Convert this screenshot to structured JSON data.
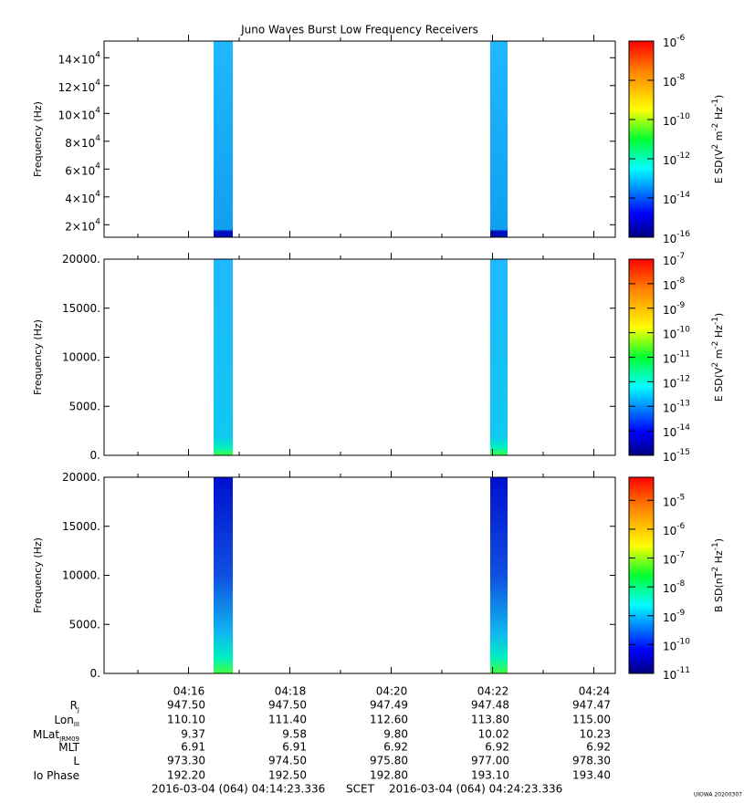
{
  "chart_data": [
    {
      "type": "spectrogram",
      "title": "Juno Waves Burst Low Frequency Receivers",
      "ylabel": "Frequency (Hz)",
      "ylim": [
        11000,
        152000
      ],
      "yticks": [
        {
          "value": 20000,
          "label": "2×10",
          "exponent": "4"
        },
        {
          "value": 40000,
          "label": "4×10",
          "exponent": "4"
        },
        {
          "value": 60000,
          "label": "6×10",
          "exponent": "4"
        },
        {
          "value": 80000,
          "label": "8×10",
          "exponent": "4"
        },
        {
          "value": 100000,
          "label": "10×10",
          "exponent": "4"
        },
        {
          "value": 120000,
          "label": "12×10",
          "exponent": "4"
        },
        {
          "value": 140000,
          "label": "14×10",
          "exponent": "4"
        }
      ],
      "zlim": [
        -16,
        -6
      ],
      "log_z": true,
      "zticks": [
        {
          "value": -16,
          "label": "10",
          "exponent": "-16"
        },
        {
          "value": -14,
          "label": "10",
          "exponent": "-14"
        },
        {
          "value": -12,
          "label": "10",
          "exponent": "-12"
        },
        {
          "value": -10,
          "label": "10",
          "exponent": "-10"
        },
        {
          "value": -8,
          "label": "10",
          "exponent": "-8"
        },
        {
          "value": -6,
          "label": "10",
          "exponent": "-6"
        }
      ],
      "zlabel": [
        {
          "text": "E SD(V"
        },
        {
          "sup": "2"
        },
        {
          "text": " m"
        },
        {
          "sup": "-2"
        },
        {
          "text": " Hz"
        },
        {
          "sup": "-1"
        },
        {
          "text": ")"
        }
      ]
    },
    {
      "type": "spectrogram",
      "ylabel": "Frequency (Hz)",
      "ylim": [
        0,
        20000
      ],
      "yticks": [
        {
          "value": 0,
          "label": "0."
        },
        {
          "value": 5000,
          "label": "5000."
        },
        {
          "value": 10000,
          "label": "10000."
        },
        {
          "value": 15000,
          "label": "15000."
        },
        {
          "value": 20000,
          "label": "20000."
        }
      ],
      "zlim": [
        -15,
        -7
      ],
      "log_z": true,
      "zticks": [
        {
          "value": -15,
          "label": "10",
          "exponent": "-15"
        },
        {
          "value": -14,
          "label": "10",
          "exponent": "-14"
        },
        {
          "value": -13,
          "label": "10",
          "exponent": "-13"
        },
        {
          "value": -12,
          "label": "10",
          "exponent": "-12"
        },
        {
          "value": -11,
          "label": "10",
          "exponent": "-11"
        },
        {
          "value": -10,
          "label": "10",
          "exponent": "-10"
        },
        {
          "value": -9,
          "label": "10",
          "exponent": "-9"
        },
        {
          "value": -8,
          "label": "10",
          "exponent": "-8"
        },
        {
          "value": -7,
          "label": "10",
          "exponent": "-7"
        }
      ],
      "zlabel": [
        {
          "text": "E SD(V"
        },
        {
          "sup": "2"
        },
        {
          "text": " m"
        },
        {
          "sup": "-2"
        },
        {
          "text": " Hz"
        },
        {
          "sup": "-1"
        },
        {
          "text": ")"
        }
      ]
    },
    {
      "type": "spectrogram",
      "ylabel": "Frequency (Hz)",
      "ylim": [
        0,
        20000
      ],
      "yticks": [
        {
          "value": 0,
          "label": "0."
        },
        {
          "value": 5000,
          "label": "5000."
        },
        {
          "value": 10000,
          "label": "10000."
        },
        {
          "value": 15000,
          "label": "15000."
        },
        {
          "value": 20000,
          "label": "20000."
        }
      ],
      "zlim": [
        -11,
        -4.2
      ],
      "log_z": true,
      "zticks": [
        {
          "value": -11,
          "label": "10",
          "exponent": "-11"
        },
        {
          "value": -10,
          "label": "10",
          "exponent": "-10"
        },
        {
          "value": -9,
          "label": "10",
          "exponent": "-9"
        },
        {
          "value": -8,
          "label": "10",
          "exponent": "-8"
        },
        {
          "value": -7,
          "label": "10",
          "exponent": "-7"
        },
        {
          "value": -6,
          "label": "10",
          "exponent": "-6"
        },
        {
          "value": -5,
          "label": "10",
          "exponent": "-5"
        }
      ],
      "zlabel": [
        {
          "text": "B SD(nT"
        },
        {
          "sup": "2"
        },
        {
          "text": " Hz"
        },
        {
          "sup": "-1"
        },
        {
          "text": ")"
        }
      ]
    }
  ],
  "x_axis": {
    "ticks": [
      "04:16",
      "04:18",
      "04:20",
      "04:22",
      "04:24"
    ]
  },
  "ephemeris": [
    {
      "label": "R",
      "sub": "J",
      "values": [
        "947.50",
        "947.50",
        "947.49",
        "947.48",
        "947.47"
      ]
    },
    {
      "label": "Lon",
      "sub": "III",
      "values": [
        "110.10",
        "111.40",
        "112.60",
        "113.80",
        "115.00"
      ]
    },
    {
      "label": "MLat",
      "sub": "JRM09",
      "values": [
        "9.37",
        "9.58",
        "9.80",
        "10.02",
        "10.23"
      ]
    },
    {
      "label": "MLT",
      "values": [
        "6.91",
        "6.91",
        "6.92",
        "6.92",
        "6.92"
      ]
    },
    {
      "label": "L",
      "values": [
        "973.30",
        "974.50",
        "975.80",
        "977.00",
        "978.30"
      ]
    },
    {
      "label": "Io Phase",
      "values": [
        "192.20",
        "192.50",
        "192.80",
        "193.10",
        "193.40"
      ]
    }
  ],
  "footer": {
    "start": "2016-03-04 (064) 04:14:23.336",
    "frame": "SCET",
    "end": "2016-03-04 (064) 04:24:23.336"
  },
  "credit": "UIOWA 20200307"
}
